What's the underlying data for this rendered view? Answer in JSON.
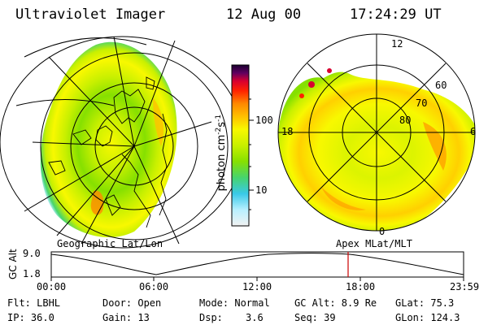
{
  "header": {
    "instrument": "Ultraviolet Imager",
    "date": "12 Aug 00",
    "time": "17:24:29 UT"
  },
  "left_panel": {
    "caption": "Geographic Lat/Lon"
  },
  "right_panel": {
    "caption": "Apex MLat/MLT",
    "mlt_labels": {
      "top": "12",
      "left": "18",
      "right": "6",
      "bottom": "0"
    },
    "lat_labels": [
      "60",
      "70",
      "80"
    ]
  },
  "colorbar": {
    "unit_label": "photon cm",
    "unit_sup1": "-2",
    "unit_mid": "s",
    "unit_sup2": "-1",
    "ticks": [
      "100",
      "10"
    ],
    "colors": [
      "#f2f2f2",
      "#b8f0ff",
      "#39c9e8",
      "#46d46e",
      "#86e000",
      "#c8f000",
      "#f8f800",
      "#ffc000",
      "#ff8800",
      "#ff2200",
      "#d80030",
      "#600060",
      "#1a0030"
    ]
  },
  "timeline": {
    "y_axis_label": "GC Alt",
    "y_ticks": [
      "9.0",
      "1.8"
    ],
    "x_ticks": [
      "00:00",
      "06:00",
      "12:00",
      "18:00",
      "23:59"
    ],
    "current_marker_color": "#cc0000"
  },
  "info": {
    "flt": "Flt: LBHL",
    "ip": "IP: 36.0",
    "door": "Door: Open",
    "gain": "Gain: 13",
    "mode": "Mode: Normal",
    "dsp_label": "Dsp:",
    "dsp_value": "3.6",
    "gc_alt": "GC Alt: 8.9 Re",
    "seq": "Seq: 39",
    "glat": "GLat: 75.3",
    "glon": "GLon: 124.3"
  }
}
